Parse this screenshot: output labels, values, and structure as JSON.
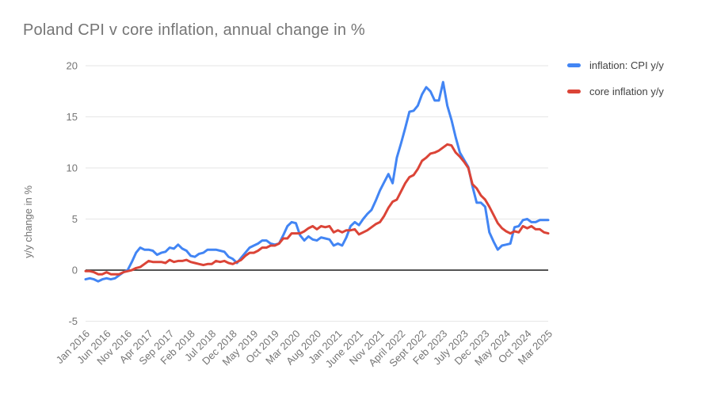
{
  "chart_data": {
    "type": "line",
    "title": "Poland CPI v core inflation, annual change in %",
    "ylabel": "y/y change in %",
    "ylim": [
      -5,
      20
    ],
    "yticks": [
      -5,
      0,
      5,
      10,
      15,
      20
    ],
    "grid": true,
    "legend_position": "right",
    "x_tick_every": 5,
    "x_tick_labels": [
      "Jan 2016",
      "Jun 2016",
      "Nov 2016",
      "Apr 2017",
      "Sep 2017",
      "Feb 2018",
      "Jul 2018",
      "Dec 2018",
      "May 2019",
      "Oct 2019",
      "Mar 2020",
      "Aug 2020",
      "Jan 2021",
      "June 2021",
      "Nov 2021",
      "April 2022",
      "Sept 2022",
      "Feb 2023",
      "July 2023",
      "Dec 2023",
      "May 2024",
      "Oct 2024",
      "Mar 2025"
    ],
    "series": [
      {
        "name": "inflation: CPI y/y",
        "color": "#4285f4",
        "values": [
          -0.9,
          -0.8,
          -0.9,
          -1.1,
          -0.9,
          -0.8,
          -0.9,
          -0.8,
          -0.5,
          -0.2,
          0.0,
          0.8,
          1.7,
          2.2,
          2.0,
          2.0,
          1.9,
          1.5,
          1.7,
          1.8,
          2.2,
          2.1,
          2.5,
          2.1,
          1.9,
          1.4,
          1.3,
          1.6,
          1.7,
          2.0,
          2.0,
          2.0,
          1.9,
          1.8,
          1.3,
          1.1,
          0.7,
          1.2,
          1.7,
          2.2,
          2.4,
          2.6,
          2.9,
          2.9,
          2.6,
          2.5,
          2.6,
          3.4,
          4.3,
          4.7,
          4.6,
          3.4,
          2.9,
          3.3,
          3.0,
          2.9,
          3.2,
          3.1,
          3.0,
          2.4,
          2.6,
          2.4,
          3.2,
          4.3,
          4.7,
          4.4,
          5.0,
          5.5,
          5.9,
          6.8,
          7.8,
          8.6,
          9.4,
          8.5,
          11.0,
          12.4,
          13.9,
          15.5,
          15.6,
          16.1,
          17.2,
          17.9,
          17.5,
          16.6,
          16.6,
          18.4,
          16.1,
          14.7,
          13.0,
          11.5,
          10.8,
          10.1,
          8.2,
          6.6,
          6.6,
          6.2,
          3.7,
          2.8,
          2.0,
          2.4,
          2.5,
          2.6,
          4.2,
          4.3,
          4.9,
          5.0,
          4.7,
          4.7,
          4.9,
          4.9,
          4.9
        ]
      },
      {
        "name": "core inflation y/y",
        "color": "#db4437",
        "values": [
          -0.1,
          -0.1,
          -0.2,
          -0.4,
          -0.4,
          -0.2,
          -0.4,
          -0.4,
          -0.4,
          -0.2,
          -0.1,
          0.0,
          0.2,
          0.3,
          0.6,
          0.9,
          0.8,
          0.8,
          0.8,
          0.7,
          1.0,
          0.8,
          0.9,
          0.9,
          1.0,
          0.8,
          0.7,
          0.6,
          0.5,
          0.6,
          0.6,
          0.9,
          0.8,
          0.9,
          0.7,
          0.6,
          0.8,
          1.0,
          1.4,
          1.7,
          1.7,
          1.9,
          2.2,
          2.2,
          2.4,
          2.4,
          2.6,
          3.1,
          3.1,
          3.6,
          3.6,
          3.6,
          3.8,
          4.1,
          4.3,
          4.0,
          4.3,
          4.2,
          4.3,
          3.7,
          3.9,
          3.7,
          3.9,
          3.9,
          4.0,
          3.5,
          3.7,
          3.9,
          4.2,
          4.5,
          4.7,
          5.3,
          6.1,
          6.7,
          6.9,
          7.7,
          8.5,
          9.1,
          9.3,
          9.9,
          10.7,
          11.0,
          11.4,
          11.5,
          11.7,
          12.0,
          12.3,
          12.2,
          11.5,
          11.1,
          10.6,
          10.0,
          8.4,
          8.0,
          7.3,
          6.9,
          6.2,
          5.4,
          4.6,
          4.1,
          3.8,
          3.6,
          3.8,
          3.7,
          4.3,
          4.1,
          4.3,
          4.0,
          4.0,
          3.7,
          3.6
        ]
      }
    ],
    "colors": {
      "title": "#757575",
      "axis_labels": "#757575",
      "gridline": "#e6e6e6",
      "zero_line": "#3c3c3c",
      "legend_text": "#424242"
    }
  }
}
